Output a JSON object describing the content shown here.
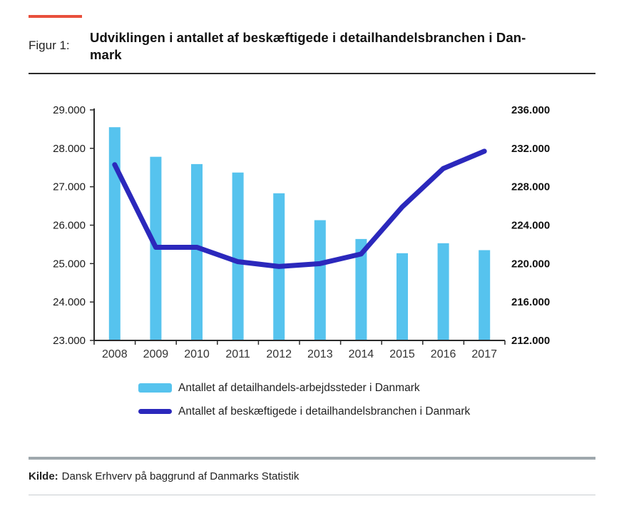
{
  "header": {
    "figure_label": "Figur 1:",
    "title_line1": "Udviklingen i antallet af beskæftigede i detailhandelsbranchen i Dan-",
    "title_line2": "mark"
  },
  "colors": {
    "accent_red": "#e8503c",
    "bar_blue": "#56c3ee",
    "line_blue": "#2b28bc",
    "axis_dark": "#2b2b2b",
    "separator_gray": "#9fa8ad",
    "thin_line_gray": "#c9ced1"
  },
  "legend": {
    "bar_label": "Antallet af detailhandels-arbejdssteder i Danmark",
    "line_label": "Antallet af beskæftigede i detailhandelsbranchen i Danmark"
  },
  "source": {
    "prefix": "Kilde:",
    "text": "Dansk Erhverv på baggrund af Danmarks Statistik"
  },
  "chart_data": {
    "type": "bar",
    "subtype": "dual-axis bar + line",
    "title": "Udviklingen i antallet af beskæftigede i detailhandelsbranchen i Danmark",
    "categories": [
      "2008",
      "2009",
      "2010",
      "2011",
      "2012",
      "2013",
      "2014",
      "2015",
      "2016",
      "2017"
    ],
    "series": [
      {
        "name": "Antallet af detailhandels-arbejdssteder i Danmark",
        "type": "bar",
        "axis": "left",
        "values": [
          28550,
          27780,
          27590,
          27370,
          26830,
          26130,
          25640,
          25270,
          25530,
          25350
        ]
      },
      {
        "name": "Antallet af beskæftigede i detailhandelsbranchen i Danmark",
        "type": "line",
        "axis": "right",
        "values": [
          230300,
          221700,
          221700,
          220200,
          219700,
          220000,
          221000,
          225900,
          229900,
          231700
        ]
      }
    ],
    "left_axis": {
      "min": 23000,
      "max": 29000,
      "step": 1000,
      "tick_labels": [
        "29.000",
        "28.000",
        "27.000",
        "26.000",
        "25.000",
        "24.000",
        "23.000"
      ]
    },
    "right_axis": {
      "min": 212000,
      "max": 236000,
      "step": 4000,
      "tick_labels": [
        "236.000",
        "232.000",
        "228.000",
        "224.000",
        "220.000",
        "216.000",
        "212.000"
      ]
    },
    "grid": false,
    "legend_position": "bottom",
    "xlabel": "",
    "ylabel_left": "",
    "ylabel_right": ""
  }
}
